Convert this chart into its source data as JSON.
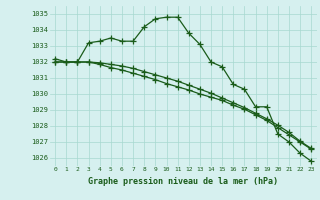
{
  "title": "Graphe pression niveau de la mer (hPa)",
  "yticks": [
    1026,
    1027,
    1028,
    1029,
    1030,
    1031,
    1032,
    1033,
    1034,
    1035
  ],
  "ylim": [
    1025.5,
    1035.5
  ],
  "xlim": [
    -0.5,
    23.5
  ],
  "line1": [
    1032.2,
    1032.0,
    1032.0,
    1033.2,
    1033.3,
    1033.5,
    1033.3,
    1033.3,
    1034.2,
    1034.7,
    1034.8,
    1034.8,
    1033.8,
    1033.1,
    1032.0,
    1031.7,
    1030.6,
    1030.3,
    1029.2,
    1029.2,
    1027.5,
    1027.0,
    1026.3,
    1025.8
  ],
  "line2": [
    1032.0,
    1032.0,
    1032.0,
    1032.0,
    1031.85,
    1031.65,
    1031.5,
    1031.3,
    1031.1,
    1030.9,
    1030.65,
    1030.45,
    1030.25,
    1030.0,
    1029.8,
    1029.6,
    1029.3,
    1029.05,
    1028.7,
    1028.35,
    1027.9,
    1027.45,
    1027.0,
    1026.55
  ],
  "line3": [
    1032.0,
    1032.0,
    1032.0,
    1032.0,
    1031.95,
    1031.85,
    1031.75,
    1031.6,
    1031.4,
    1031.2,
    1031.0,
    1030.8,
    1030.55,
    1030.3,
    1030.05,
    1029.75,
    1029.45,
    1029.15,
    1028.8,
    1028.45,
    1028.05,
    1027.6,
    1027.05,
    1026.6
  ],
  "line_color": "#1a5c1a",
  "bg_color": "#d6f0ef",
  "grid_color": "#a8d8d0",
  "title_color": "#1a5c1a",
  "marker": "+",
  "marker_size": 4,
  "line_width": 0.9
}
